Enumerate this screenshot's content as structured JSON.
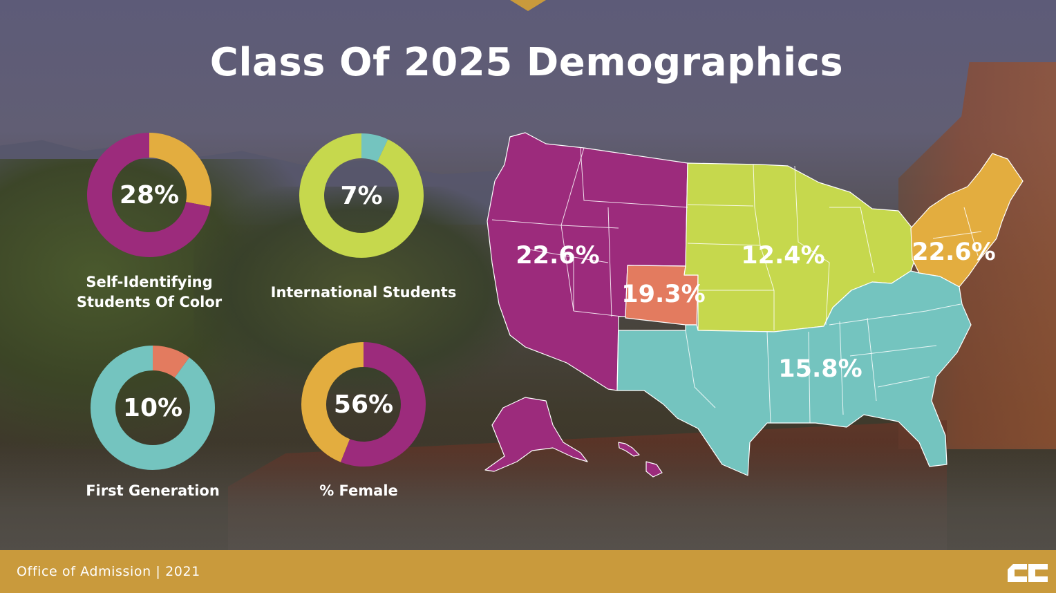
{
  "title": "Class Of 2025 Demographics",
  "colors": {
    "magenta": "#9c2b7c",
    "gold": "#e3ad3f",
    "lime": "#c6d84d",
    "teal": "#74c4bf",
    "coral": "#e37b5f",
    "footer": "#c99a3c"
  },
  "chart_data": [
    {
      "type": "pie",
      "label": "Self-Identifying Students Of Color",
      "percent_label": "28%",
      "values": [
        28,
        72
      ],
      "colors": [
        "#e3ad3f",
        "#9c2b7c"
      ]
    },
    {
      "type": "pie",
      "label": "International Students",
      "percent_label": "7%",
      "values": [
        7,
        93
      ],
      "colors": [
        "#74c4bf",
        "#c6d84d"
      ]
    },
    {
      "type": "pie",
      "label": "First Generation",
      "percent_label": "10%",
      "values": [
        10,
        90
      ],
      "colors": [
        "#e37b5f",
        "#74c4bf"
      ]
    },
    {
      "type": "pie",
      "label": "% Female",
      "percent_label": "56%",
      "values": [
        56,
        44
      ],
      "colors": [
        "#9c2b7c",
        "#e3ad3f"
      ]
    },
    {
      "type": "map",
      "regions": [
        {
          "region": "West",
          "value": 22.6,
          "label": "22.6%",
          "color": "#9c2b7c"
        },
        {
          "region": "Colorado",
          "value": 19.3,
          "label": "19.3%",
          "color": "#e37b5f"
        },
        {
          "region": "Midwest",
          "value": 12.4,
          "label": "12.4%",
          "color": "#c6d84d"
        },
        {
          "region": "Northeast",
          "value": 22.6,
          "label": "22.6%",
          "color": "#e3ad3f"
        },
        {
          "region": "South",
          "value": 15.8,
          "label": "15.8%",
          "color": "#74c4bf"
        }
      ]
    }
  ],
  "footer": {
    "text": "Office of Admission  |  2021",
    "logo_icon": "cc-logo-icon"
  }
}
